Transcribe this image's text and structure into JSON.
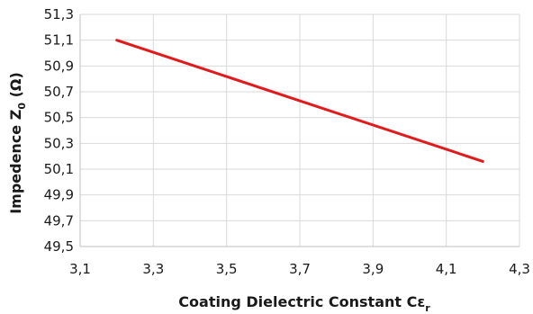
{
  "chart_data": {
    "type": "line",
    "title": "",
    "xlabel": {
      "main": "Coating Dielectric Constant Cε",
      "sub": "r"
    },
    "ylabel": {
      "pre": "Impedence Z",
      "sub": "0",
      "post": " (Ω)"
    },
    "xlim": [
      3.1,
      4.3
    ],
    "ylim": [
      49.5,
      51.3
    ],
    "xticks": [
      "3,1",
      "3,3",
      "3,5",
      "3,7",
      "3,9",
      "4,1",
      "4,3"
    ],
    "yticks": [
      "49,5",
      "49,7",
      "49,9",
      "50,1",
      "50,3",
      "50,5",
      "50,7",
      "50,9",
      "51,1",
      "51,3"
    ],
    "grid": true,
    "legend": "none",
    "series": [
      {
        "color": "#e31a1c",
        "x": [
          3.2,
          4.2
        ],
        "y": [
          51.1,
          50.16
        ]
      }
    ]
  }
}
